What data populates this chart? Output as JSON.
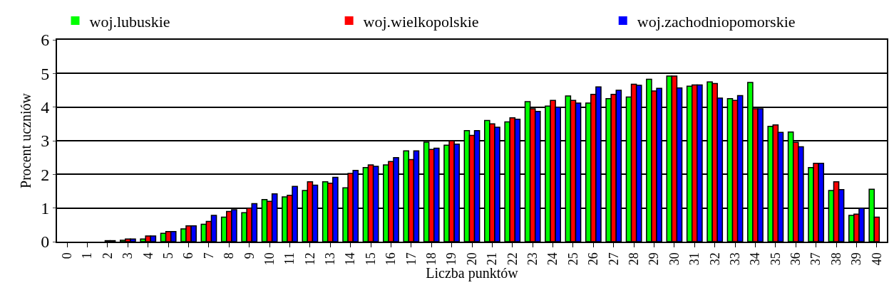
{
  "chart_data": {
    "type": "bar",
    "xlabel": "Liczba punktów",
    "ylabel": "Procent uczniów",
    "categories": [
      "0",
      "1",
      "2",
      "3",
      "4",
      "5",
      "6",
      "7",
      "8",
      "9",
      "10",
      "11",
      "12",
      "13",
      "14",
      "15",
      "16",
      "17",
      "18",
      "19",
      "20",
      "21",
      "22",
      "23",
      "24",
      "25",
      "26",
      "27",
      "28",
      "29",
      "30",
      "31",
      "32",
      "33",
      "34",
      "35",
      "36",
      "37",
      "38",
      "39",
      "40"
    ],
    "series": [
      {
        "name": "woj.lubuskie",
        "color": "#00ff00",
        "values": [
          0,
          0,
          null,
          0.04,
          0.08,
          0.25,
          0.38,
          0.52,
          0.73,
          0.86,
          1.25,
          1.33,
          1.52,
          1.78,
          1.6,
          2.2,
          2.28,
          2.7,
          2.96,
          2.87,
          3.3,
          3.6,
          3.56,
          4.16,
          4.03,
          4.33,
          4.12,
          4.25,
          4.3,
          4.83,
          4.92,
          4.62,
          4.75,
          4.25,
          4.73,
          3.43,
          3.26,
          2.2,
          1.52,
          0.78,
          1.56
        ]
      },
      {
        "name": "woj.wielkopolskie",
        "color": "#ff0000",
        "values": [
          0,
          0,
          0.03,
          0.08,
          0.17,
          0.3,
          0.47,
          0.6,
          0.9,
          1.0,
          1.2,
          1.38,
          1.78,
          1.74,
          2.03,
          2.28,
          2.38,
          2.44,
          2.74,
          3.0,
          3.16,
          3.5,
          3.68,
          3.95,
          4.2,
          4.2,
          4.38,
          4.38,
          4.68,
          4.48,
          4.92,
          4.66,
          4.7,
          4.2,
          3.95,
          3.47,
          2.95,
          2.33,
          1.78,
          0.82,
          0.73
        ]
      },
      {
        "name": "woj.zachodniopomorskie",
        "color": "#0000ff",
        "values": [
          0,
          0,
          0.03,
          0.08,
          0.17,
          0.3,
          0.47,
          0.78,
          0.95,
          1.13,
          1.42,
          1.64,
          1.68,
          1.91,
          2.12,
          2.24,
          2.5,
          2.7,
          2.78,
          2.9,
          3.3,
          3.4,
          3.64,
          3.87,
          4.0,
          4.12,
          4.6,
          4.5,
          4.65,
          4.56,
          4.57,
          4.66,
          4.27,
          4.34,
          3.95,
          3.25,
          2.82,
          2.33,
          1.55,
          1.0,
          null
        ]
      }
    ],
    "ylim": [
      0,
      6
    ],
    "yticks": [
      0,
      1,
      2,
      3,
      4,
      5,
      6
    ],
    "grid": "y",
    "legend": "top"
  }
}
